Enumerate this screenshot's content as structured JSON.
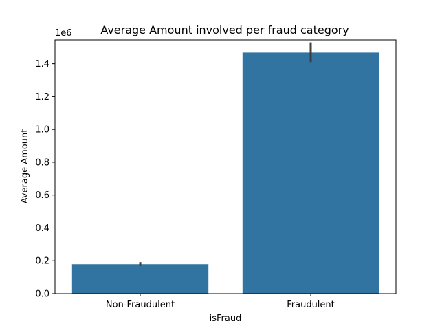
{
  "chart_data": {
    "type": "bar",
    "title": "Average Amount involved per fraud category",
    "xlabel": "isFraud",
    "ylabel": "Average Amount",
    "y_offset_label": "1e6",
    "categories": [
      "Non-Fraudulent",
      "Fraudulent"
    ],
    "values": [
      0.179,
      1.468
    ],
    "error_bars": [
      {
        "low": 0.169,
        "high": 0.192
      },
      {
        "low": 1.41,
        "high": 1.53
      }
    ],
    "ylim": [
      0,
      1.545
    ],
    "yticks": [
      0.0,
      0.2,
      0.4,
      0.6,
      0.8,
      1.0,
      1.2,
      1.4
    ],
    "ytick_labels": [
      "0.0",
      "0.2",
      "0.4",
      "0.6",
      "0.8",
      "1.0",
      "1.2",
      "1.4"
    ],
    "grid": false,
    "colors": {
      "bar": "#3274a1",
      "error_bar": "#3d3d3d",
      "axis": "#000000"
    }
  }
}
